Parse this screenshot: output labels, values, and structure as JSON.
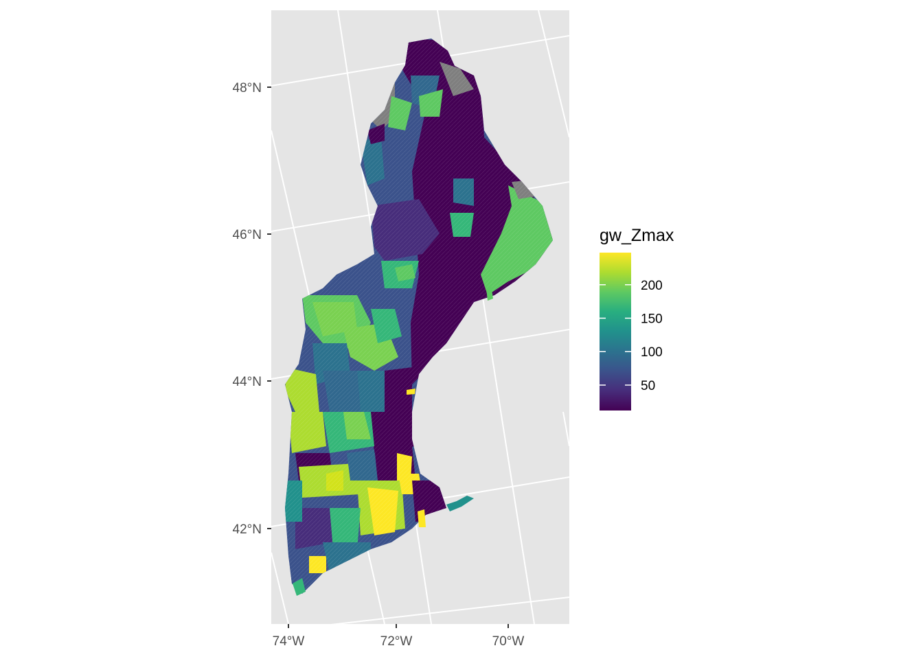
{
  "map": {
    "latitude_labels": [
      "48°N",
      "46°N",
      "44°N",
      "42°N"
    ],
    "longitude_labels": [
      "74°W",
      "72°W",
      "70°W"
    ],
    "panel_background": "#e5e5e5",
    "graticule_color": "#ffffff",
    "missing_color": "#7f7f7f"
  },
  "legend": {
    "title": "gw_Zmax",
    "ticks": [
      "200",
      "150",
      "100",
      "50"
    ],
    "tick_values": [
      200,
      150,
      100,
      50
    ],
    "range": [
      12,
      248
    ],
    "palette": [
      "#440154",
      "#472d7b",
      "#3b528b",
      "#2c728e",
      "#21918c",
      "#28ae80",
      "#5ec962",
      "#addc30",
      "#fde725"
    ]
  }
}
